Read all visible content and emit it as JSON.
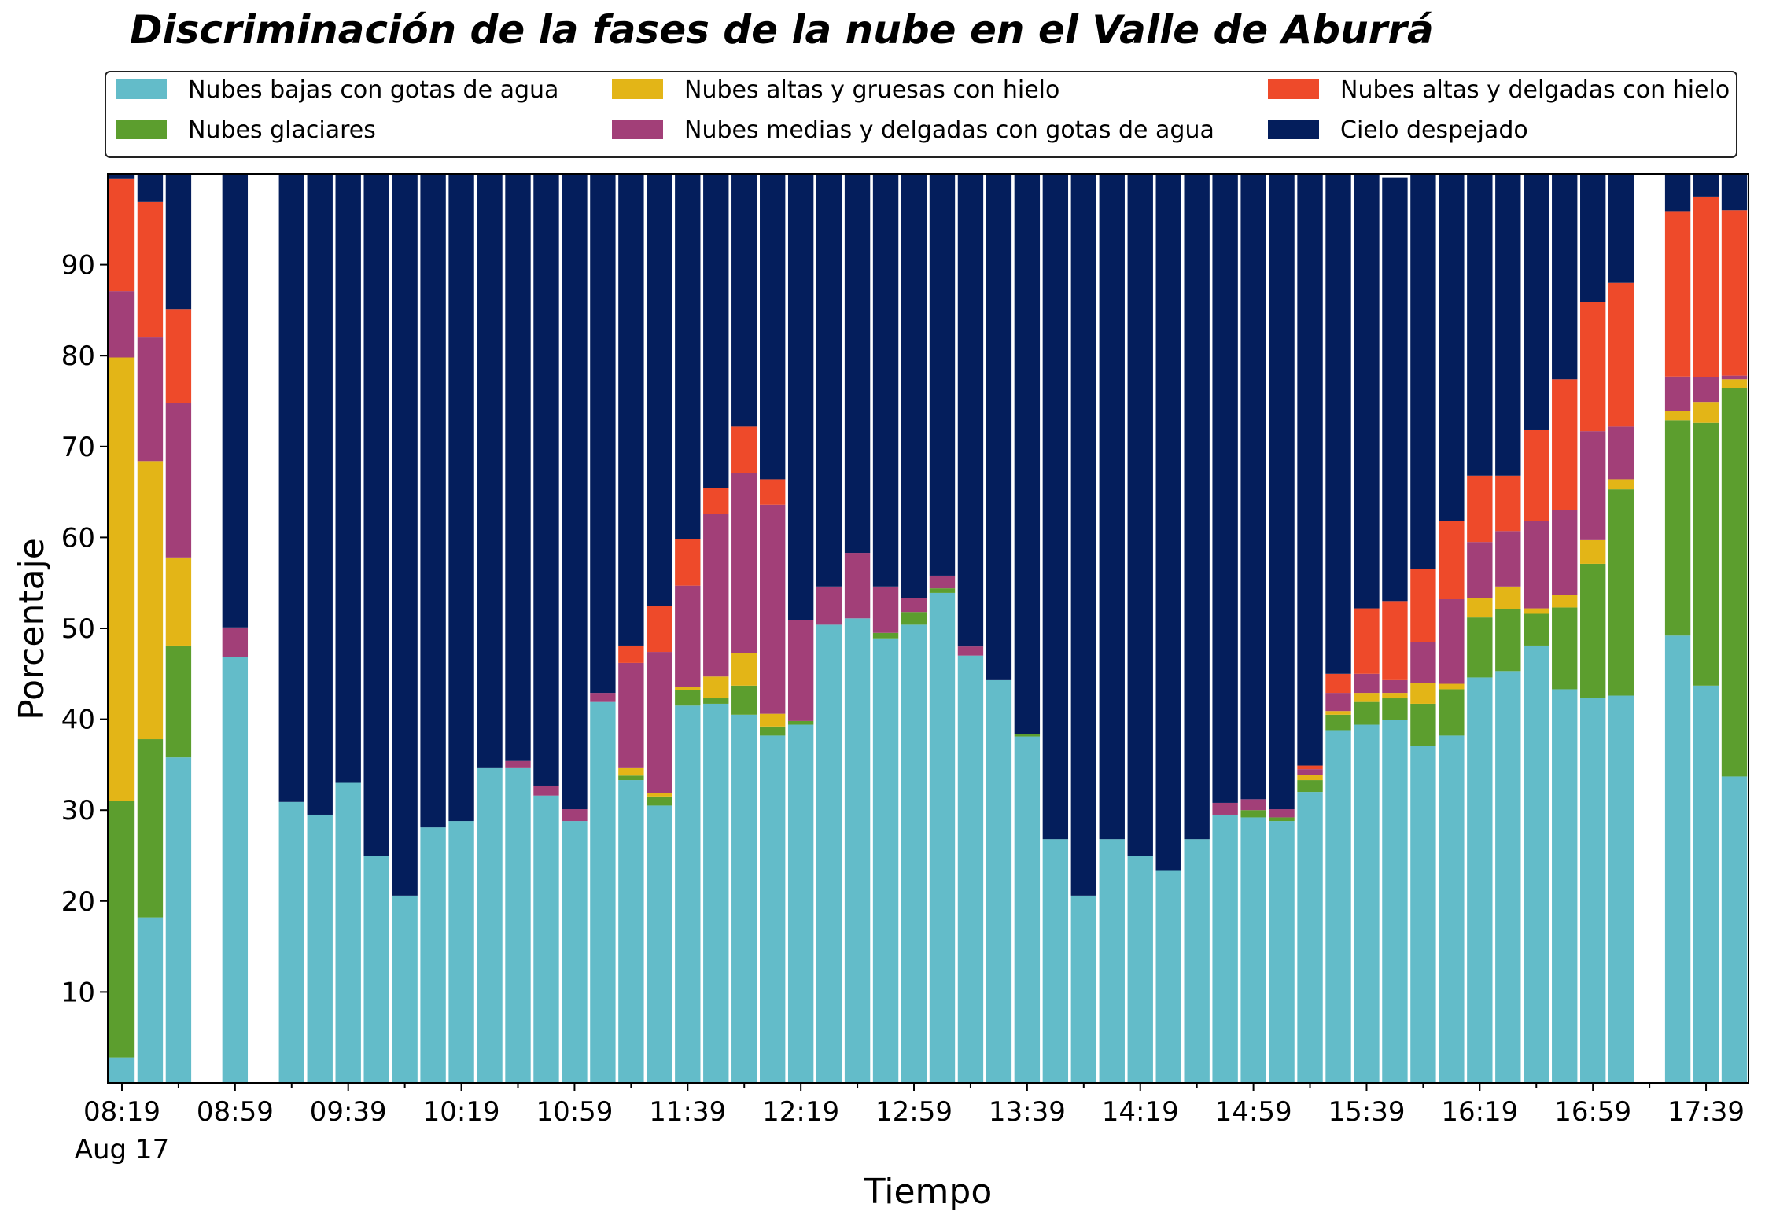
{
  "chart_data": {
    "type": "bar",
    "stacked": true,
    "title": "Discriminación de la fases de la nube en el Valle de Aburrá",
    "xlabel": "Tiempo",
    "ylabel": "Porcentaje",
    "ylim": [
      0,
      100
    ],
    "yticks": [
      10,
      20,
      30,
      40,
      50,
      60,
      70,
      80,
      90
    ],
    "xtick_labels": [
      "08:19",
      "08:59",
      "09:39",
      "10:19",
      "10:59",
      "11:39",
      "12:19",
      "12:59",
      "13:39",
      "14:19",
      "14:59",
      "15:39",
      "16:19",
      "16:59",
      "17:39"
    ],
    "xtick_sublabel": "Aug 17",
    "grid": false,
    "legend_position": "top",
    "colors": {
      "bajas": "#63bcc9",
      "glaciares": "#5c9e2e",
      "altas_gruesas": "#e3b517",
      "medias_delgadas": "#a23f78",
      "altas_delgadas": "#ee4a2a",
      "despejado": "#041e5c"
    },
    "legend": [
      {
        "key": "bajas",
        "label": "Nubes bajas con gotas de agua"
      },
      {
        "key": "altas_gruesas",
        "label": "Nubes altas y gruesas con hielo"
      },
      {
        "key": "altas_delgadas",
        "label": "Nubes altas y delgadas con hielo"
      },
      {
        "key": "glaciares",
        "label": "Nubes glaciares"
      },
      {
        "key": "medias_delgadas",
        "label": "Nubes medias y delgadas con gotas de agua"
      },
      {
        "key": "despejado",
        "label": "Cielo despejado"
      }
    ],
    "x": [
      "08:19",
      "08:29",
      "08:39",
      "08:49",
      "08:59",
      "09:09",
      "09:19",
      "09:29",
      "09:39",
      "09:49",
      "09:59",
      "10:09",
      "10:19",
      "10:29",
      "10:39",
      "10:49",
      "10:59",
      "11:09",
      "11:19",
      "11:29",
      "11:39",
      "11:49",
      "11:59",
      "12:09",
      "12:19",
      "12:29",
      "12:39",
      "12:49",
      "12:59",
      "13:09",
      "13:19",
      "13:29",
      "13:39",
      "13:49",
      "13:59",
      "14:09",
      "14:19",
      "14:29",
      "14:39",
      "14:49",
      "14:59",
      "15:09",
      "15:19",
      "15:29",
      "15:39",
      "15:49",
      "15:59",
      "16:09",
      "16:19",
      "16:29",
      "16:39",
      "16:49",
      "16:59",
      "17:09",
      "17:19",
      "17:29",
      "17:39",
      "17:49"
    ],
    "series": [
      {
        "key": "bajas",
        "values": [
          2.8,
          18.2,
          35.8,
          null,
          46.8,
          null,
          30.9,
          29.5,
          33,
          25,
          20.6,
          28.1,
          28.8,
          34.7,
          34.7,
          31.6,
          28.8,
          41.9,
          33.3,
          30.5,
          41.5,
          41.7,
          40.5,
          38.2,
          39.4,
          50.4,
          51.1,
          48.9,
          50.4,
          53.9,
          47,
          44.3,
          38.1,
          26.8,
          20.6,
          26.8,
          25,
          23.4,
          26.8,
          29.5,
          29.2,
          28.8,
          32,
          38.8,
          39.4,
          39.9,
          37.1,
          38.2,
          44.6,
          45.3,
          48.1,
          43.3,
          42.3,
          42.6,
          null,
          49.2,
          43.7,
          33.7
        ]
      },
      {
        "key": "glaciares",
        "values": [
          28.2,
          19.6,
          12.3,
          null,
          0,
          null,
          0,
          0,
          0,
          0,
          0,
          0,
          0,
          0,
          0,
          0,
          0,
          0,
          0.5,
          1,
          1.7,
          0.6,
          3.2,
          1,
          0.4,
          0,
          0,
          0.6,
          1.4,
          0.5,
          0,
          0,
          0.3,
          0,
          0,
          0,
          0,
          0,
          0,
          0,
          0.8,
          0.4,
          1.3,
          1.7,
          2.5,
          2.4,
          4.6,
          5.1,
          6.6,
          6.8,
          3.5,
          9,
          14.8,
          22.7,
          null,
          23.7,
          28.9,
          42.7
        ]
      },
      {
        "key": "altas_gruesas",
        "values": [
          48.8,
          30.6,
          9.7,
          null,
          0,
          null,
          0,
          0,
          0,
          0,
          0,
          0,
          0,
          0,
          0,
          0,
          0,
          0,
          0.9,
          0.4,
          0.4,
          2.4,
          3.6,
          1.4,
          0,
          0,
          0,
          0,
          0,
          0,
          0,
          0,
          0,
          0,
          0,
          0,
          0,
          0,
          0,
          0,
          0,
          0,
          0.6,
          0.4,
          1,
          0.6,
          2.3,
          0.6,
          2.1,
          2.5,
          0.6,
          1.4,
          2.6,
          1.1,
          null,
          1,
          2.3,
          1
        ]
      },
      {
        "key": "medias_delgadas",
        "values": [
          7.3,
          13.6,
          17,
          null,
          3.3,
          null,
          0,
          0,
          0,
          0,
          0,
          0,
          0,
          0,
          0.7,
          1.1,
          1.3,
          1,
          11.5,
          15.5,
          11.1,
          17.9,
          19.8,
          23,
          11.1,
          4.2,
          7.2,
          5.1,
          1.5,
          1.4,
          1,
          0,
          0,
          0,
          0,
          0,
          0,
          0,
          0,
          1.3,
          1.2,
          0.9,
          0.6,
          2,
          2.1,
          1.4,
          4.5,
          9.3,
          6.2,
          6.1,
          9.6,
          9.3,
          12,
          5.8,
          null,
          3.8,
          2.7,
          0.4
        ]
      },
      {
        "key": "altas_delgadas",
        "values": [
          12.4,
          14.9,
          10.3,
          null,
          0,
          null,
          0,
          0,
          0,
          0,
          0,
          0,
          0,
          0,
          0,
          0,
          0,
          0,
          1.9,
          5.1,
          5.1,
          2.8,
          5.1,
          2.8,
          0,
          0,
          0,
          0,
          0,
          0,
          0,
          0,
          0,
          0,
          0,
          0,
          0,
          0,
          0,
          0,
          0,
          0,
          0.4,
          2.1,
          7.2,
          8.7,
          8,
          8.6,
          7.3,
          6.1,
          10,
          14.4,
          14.2,
          15.8,
          null,
          18.2,
          19.9,
          18.2
        ]
      },
      {
        "key": "despejado",
        "values": [
          0.5,
          3,
          14.9,
          null,
          49.9,
          null,
          69.1,
          70.5,
          67,
          75,
          79.4,
          71.9,
          71.2,
          65.3,
          64.6,
          67.3,
          69.9,
          57.1,
          51.9,
          47.5,
          40.2,
          34.6,
          27.8,
          33.6,
          49.1,
          45.4,
          41.7,
          45.4,
          46.7,
          44.2,
          52,
          55.7,
          61.6,
          73.2,
          79.4,
          73.2,
          75,
          76.6,
          73.2,
          69.2,
          68.8,
          69.9,
          65.1,
          55,
          47.8,
          46.6,
          43.5,
          38.2,
          33.2,
          33.2,
          28.2,
          22.6,
          14.1,
          12,
          null,
          4.1,
          2.5,
          4
        ]
      }
    ]
  }
}
